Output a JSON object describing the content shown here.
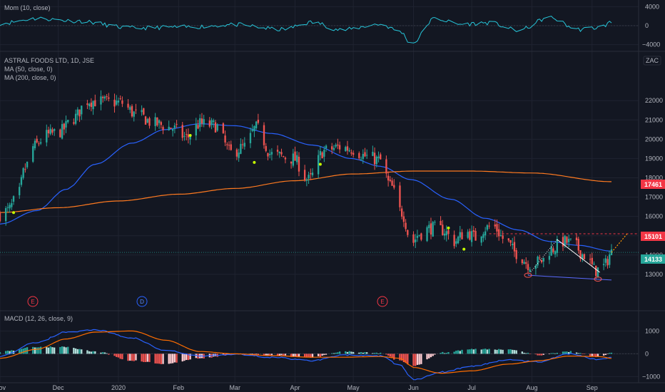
{
  "colors": {
    "background": "#131722",
    "grid": "#1f2330",
    "separator": "#2a2e39",
    "text": "#b2b5be",
    "candle_up": "#26a69a",
    "candle_down": "#ef5350",
    "ma50": "#2962ff",
    "ma200": "#ff7a20",
    "momentum": "#26c6da",
    "macd_line": "#2962ff",
    "signal_line": "#ff6d00",
    "price_tag": "#26a69a",
    "level_tag": "#f23645",
    "earnings": "#f23645",
    "dividend": "#2962ff",
    "pattern": "#ffffff",
    "projection": "#ff9800",
    "pivot_dot": "#c6ff00"
  },
  "panes": {
    "momentum_label": "Mom (10, close)",
    "symbol_label": "ASTRAL FOODS LTD, 1D, JSE",
    "ma50_label": "MA (50, close, 0)",
    "ma200_label": "MA (200, close, 0)",
    "macd_label": "MACD (12, 26, close, 9)",
    "currency": "ZAC"
  },
  "tags": {
    "level_high": "17461",
    "level_mid": "15101",
    "last_price": "14133"
  },
  "events": [
    {
      "type": "earnings",
      "letter": "E",
      "date": "2019-11-12"
    },
    {
      "type": "dividend",
      "letter": "D",
      "date": "2020-01-08"
    },
    {
      "type": "earnings",
      "letter": "E",
      "date": "2020-05-25"
    }
  ],
  "chart_data": [
    {
      "type": "candlestick",
      "pane": "price",
      "x_axis": {
        "range": [
          "2019-11-01",
          "2020-09-30"
        ],
        "ticks": [
          "Nov",
          "Dec",
          "2020",
          "Feb",
          "Mar",
          "Apr",
          "May",
          "Jun",
          "Jul",
          "Aug",
          "Sep"
        ]
      },
      "y_axis": {
        "range": [
          11700,
          22600
        ],
        "ticks": [
          13000,
          14000,
          15000,
          16000,
          17000,
          18000,
          19000,
          20000,
          21000,
          22000
        ],
        "position": "right"
      },
      "close_anchors": [
        [
          "2019-11-01",
          16100
        ],
        [
          "2019-11-05",
          16300
        ],
        [
          "2019-11-10",
          17000
        ],
        [
          "2019-11-14",
          18500
        ],
        [
          "2019-11-18",
          19600
        ],
        [
          "2019-11-25",
          20200
        ],
        [
          "2019-12-02",
          20400
        ],
        [
          "2019-12-09",
          21100
        ],
        [
          "2019-12-16",
          22000
        ],
        [
          "2019-12-23",
          21950
        ],
        [
          "2020-01-02",
          21900
        ],
        [
          "2020-01-10",
          21300
        ],
        [
          "2020-01-20",
          20800
        ],
        [
          "2020-01-28",
          20600
        ],
        [
          "2020-02-05",
          20100
        ],
        [
          "2020-02-12",
          20800
        ],
        [
          "2020-02-20",
          20700
        ],
        [
          "2020-02-28",
          19300
        ],
        [
          "2020-03-06",
          19600
        ],
        [
          "2020-03-12",
          20600
        ],
        [
          "2020-03-20",
          19200
        ],
        [
          "2020-03-31",
          19000
        ],
        [
          "2020-04-08",
          17900
        ],
        [
          "2020-04-16",
          19400
        ],
        [
          "2020-04-24",
          19600
        ],
        [
          "2020-04-30",
          19500
        ],
        [
          "2020-05-08",
          19100
        ],
        [
          "2020-05-15",
          18900
        ],
        [
          "2020-05-20",
          17600
        ],
        [
          "2020-05-26",
          16200
        ],
        [
          "2020-05-31",
          14600
        ],
        [
          "2020-06-04",
          15100
        ],
        [
          "2020-06-10",
          15400
        ],
        [
          "2020-06-16",
          15300
        ],
        [
          "2020-06-22",
          14700
        ],
        [
          "2020-06-28",
          15200
        ],
        [
          "2020-07-03",
          14900
        ],
        [
          "2020-07-08",
          15400
        ],
        [
          "2020-07-12",
          15500
        ],
        [
          "2020-07-18",
          14800
        ],
        [
          "2020-07-24",
          14100
        ],
        [
          "2020-07-31",
          13500
        ],
        [
          "2020-08-06",
          13700
        ],
        [
          "2020-08-11",
          14300
        ],
        [
          "2020-08-17",
          14700
        ],
        [
          "2020-08-22",
          14600
        ],
        [
          "2020-08-28",
          14000
        ],
        [
          "2020-09-03",
          13200
        ],
        [
          "2020-09-07",
          13400
        ],
        [
          "2020-09-11",
          14133
        ]
      ],
      "series": [
        {
          "name": "MA (50, close, 0)",
          "values": [
            [
              "2019-11-01",
              15600
            ],
            [
              "2019-11-20",
              16300
            ],
            [
              "2019-12-05",
              17400
            ],
            [
              "2019-12-20",
              18700
            ],
            [
              "2020-01-08",
              19800
            ],
            [
              "2020-01-25",
              20500
            ],
            [
              "2020-02-12",
              20800
            ],
            [
              "2020-03-01",
              20700
            ],
            [
              "2020-03-20",
              20300
            ],
            [
              "2020-04-10",
              19700
            ],
            [
              "2020-04-30",
              19000
            ],
            [
              "2020-05-15",
              18600
            ],
            [
              "2020-05-31",
              17900
            ],
            [
              "2020-06-20",
              16900
            ],
            [
              "2020-07-08",
              15900
            ],
            [
              "2020-07-25",
              15300
            ],
            [
              "2020-08-10",
              14700
            ],
            [
              "2020-08-25",
              14500
            ],
            [
              "2020-09-11",
              14200
            ]
          ]
        },
        {
          "name": "MA (200, close, 0)",
          "values": [
            [
              "2019-11-01",
              16200
            ],
            [
              "2019-12-01",
              16450
            ],
            [
              "2020-01-01",
              16800
            ],
            [
              "2020-02-01",
              17150
            ],
            [
              "2020-03-01",
              17450
            ],
            [
              "2020-04-01",
              17850
            ],
            [
              "2020-05-01",
              18200
            ],
            [
              "2020-06-01",
              18350
            ],
            [
              "2020-07-01",
              18350
            ],
            [
              "2020-08-01",
              18250
            ],
            [
              "2020-09-11",
              17800
            ]
          ]
        }
      ],
      "horizontal_levels": [
        17461,
        15101,
        14133
      ],
      "pattern_lines": [
        [
          [
            "2020-07-30",
            12950
          ],
          [
            "2020-08-14",
            14800
          ]
        ],
        [
          [
            "2020-08-14",
            14800
          ],
          [
            "2020-09-05",
            13100
          ]
        ],
        [
          [
            "2020-07-30",
            12950
          ],
          [
            "2020-09-11",
            12700
          ]
        ]
      ],
      "projection": [
        [
          "2020-09-11",
          14133
        ],
        [
          "2020-09-18",
          15101
        ]
      ]
    },
    {
      "type": "line",
      "pane": "momentum",
      "name": "Mom (10, close)",
      "y_axis": {
        "range": [
          -4500,
          4500
        ],
        "ticks": [
          4000,
          0,
          -4000
        ]
      },
      "anchors": [
        [
          "2019-11-01",
          500
        ],
        [
          "2019-11-20",
          1500
        ],
        [
          "2019-12-10",
          1000
        ],
        [
          "2020-01-08",
          -500
        ],
        [
          "2020-02-05",
          -300
        ],
        [
          "2020-03-01",
          200
        ],
        [
          "2020-03-25",
          -800
        ],
        [
          "2020-04-10",
          700
        ],
        [
          "2020-04-25",
          -900
        ],
        [
          "2020-05-15",
          300
        ],
        [
          "2020-05-25",
          -1200
        ],
        [
          "2020-05-31",
          -3800
        ],
        [
          "2020-06-12",
          1500
        ],
        [
          "2020-06-25",
          300
        ],
        [
          "2020-07-10",
          600
        ],
        [
          "2020-07-25",
          -1000
        ],
        [
          "2020-08-10",
          1700
        ],
        [
          "2020-08-25",
          -800
        ],
        [
          "2020-09-05",
          -400
        ],
        [
          "2020-09-11",
          700
        ]
      ]
    },
    {
      "type": "histogram+line",
      "pane": "macd",
      "name": "MACD (12, 26, close, 9)",
      "y_axis": {
        "range": [
          -1300,
          1200
        ],
        "ticks": [
          1000,
          0,
          -1000
        ]
      },
      "macd": [
        [
          "2019-11-01",
          -100
        ],
        [
          "2019-11-20",
          500
        ],
        [
          "2019-12-05",
          950
        ],
        [
          "2019-12-20",
          1050
        ],
        [
          "2020-01-08",
          700
        ],
        [
          "2020-01-25",
          150
        ],
        [
          "2020-02-12",
          -100
        ],
        [
          "2020-03-01",
          -20
        ],
        [
          "2020-03-20",
          -150
        ],
        [
          "2020-04-10",
          -300
        ],
        [
          "2020-04-25",
          -50
        ],
        [
          "2020-05-15",
          -100
        ],
        [
          "2020-05-25",
          -500
        ],
        [
          "2020-06-01",
          -1150
        ],
        [
          "2020-06-15",
          -800
        ],
        [
          "2020-07-01",
          -550
        ],
        [
          "2020-07-20",
          -250
        ],
        [
          "2020-08-05",
          -350
        ],
        [
          "2020-08-20",
          0
        ],
        [
          "2020-09-05",
          -250
        ],
        [
          "2020-09-11",
          -150
        ]
      ],
      "signal": [
        [
          "2019-11-01",
          -200
        ],
        [
          "2019-11-20",
          200
        ],
        [
          "2019-12-05",
          650
        ],
        [
          "2019-12-20",
          950
        ],
        [
          "2020-01-08",
          1000
        ],
        [
          "2020-01-25",
          600
        ],
        [
          "2020-02-12",
          100
        ],
        [
          "2020-03-01",
          0
        ],
        [
          "2020-03-20",
          -80
        ],
        [
          "2020-04-10",
          -150
        ],
        [
          "2020-04-25",
          -150
        ],
        [
          "2020-05-15",
          -120
        ],
        [
          "2020-05-25",
          -200
        ],
        [
          "2020-06-01",
          -600
        ],
        [
          "2020-06-15",
          -850
        ],
        [
          "2020-07-01",
          -750
        ],
        [
          "2020-07-20",
          -450
        ],
        [
          "2020-08-05",
          -300
        ],
        [
          "2020-08-20",
          -100
        ],
        [
          "2020-09-05",
          -120
        ],
        [
          "2020-09-11",
          -200
        ]
      ]
    }
  ]
}
